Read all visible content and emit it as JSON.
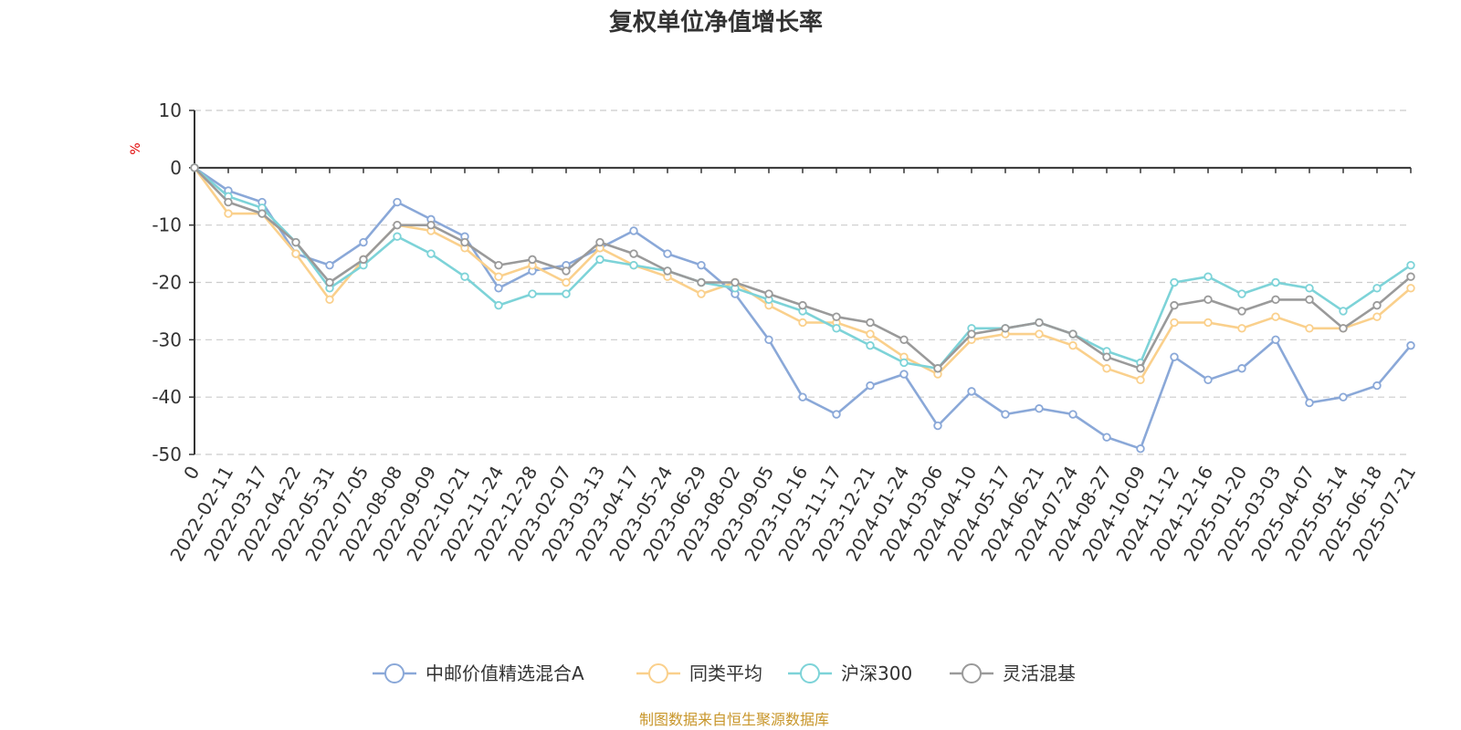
{
  "chart_data": {
    "type": "line",
    "title": "复权单位净值增长率",
    "ylabel": "%",
    "ylim": [
      -50,
      10
    ],
    "yticks": [
      10,
      0,
      -10,
      -20,
      -30,
      -40,
      -50
    ],
    "grid": true,
    "legend_position": "bottom",
    "x_tick_labels": [
      "0",
      "2022-02-11",
      "2022-03-17",
      "2022-04-22",
      "2022-05-31",
      "2022-07-05",
      "2022-08-08",
      "2022-09-09",
      "2022-10-21",
      "2022-11-24",
      "2022-12-28",
      "2023-02-07",
      "2023-03-13",
      "2023-04-17",
      "2023-05-24",
      "2023-06-29",
      "2023-08-02",
      "2023-09-05",
      "2023-10-16",
      "2023-11-17",
      "2023-12-21",
      "2024-01-24",
      "2024-03-06",
      "2024-04-10",
      "2024-05-17",
      "2024-06-21",
      "2024-07-24",
      "2024-08-27",
      "2024-10-09",
      "2024-11-12",
      "2024-12-16",
      "2025-01-20",
      "2025-03-03",
      "2025-04-07",
      "2025-05-14",
      "2025-06-18",
      "2025-07-21"
    ],
    "series": [
      {
        "name": "中邮价值精选混合A",
        "color": "#8aa8d8",
        "values": [
          0,
          -4,
          -6,
          -15,
          -17,
          -13,
          -6,
          -9,
          -12,
          -21,
          -18,
          -17,
          -14,
          -11,
          -15,
          -17,
          -22,
          -30,
          -40,
          -43,
          -38,
          -36,
          -45,
          -39,
          -43,
          -42,
          -43,
          -47,
          -49,
          -33,
          -37,
          -35,
          -30,
          -41,
          -40,
          -38,
          -31
        ]
      },
      {
        "name": "同类平均",
        "color": "#fad08c",
        "values": [
          0,
          -8,
          -8,
          -15,
          -23,
          -16,
          -10,
          -11,
          -14,
          -19,
          -17,
          -20,
          -14,
          -17,
          -19,
          -22,
          -20,
          -24,
          -27,
          -27,
          -29,
          -33,
          -36,
          -30,
          -29,
          -29,
          -31,
          -35,
          -37,
          -27,
          -27,
          -28,
          -26,
          -28,
          -28,
          -26,
          -21
        ]
      },
      {
        "name": "沪深300",
        "color": "#7dd3d8",
        "values": [
          0,
          -5,
          -7,
          -13,
          -21,
          -17,
          -12,
          -15,
          -19,
          -24,
          -22,
          -22,
          -16,
          -17,
          -18,
          -20,
          -21,
          -23,
          -25,
          -28,
          -31,
          -34,
          -35,
          -28,
          -28,
          -27,
          -29,
          -32,
          -34,
          -20,
          -19,
          -22,
          -20,
          -21,
          -25,
          -21,
          -17
        ]
      },
      {
        "name": "灵活混基",
        "color": "#9a9a9a",
        "values": [
          0,
          -6,
          -8,
          -13,
          -20,
          -16,
          -10,
          -10,
          -13,
          -17,
          -16,
          -18,
          -13,
          -15,
          -18,
          -20,
          -20,
          -22,
          -24,
          -26,
          -27,
          -30,
          -35,
          -29,
          -28,
          -27,
          -29,
          -33,
          -35,
          -24,
          -23,
          -25,
          -23,
          -23,
          -28,
          -24,
          -19
        ]
      }
    ]
  },
  "legend": {
    "items": [
      "中邮价值精选混合A",
      "同类平均",
      "沪深300",
      "灵活混基"
    ]
  },
  "footer": {
    "source_text": "制图数据来自恒生聚源数据库"
  }
}
